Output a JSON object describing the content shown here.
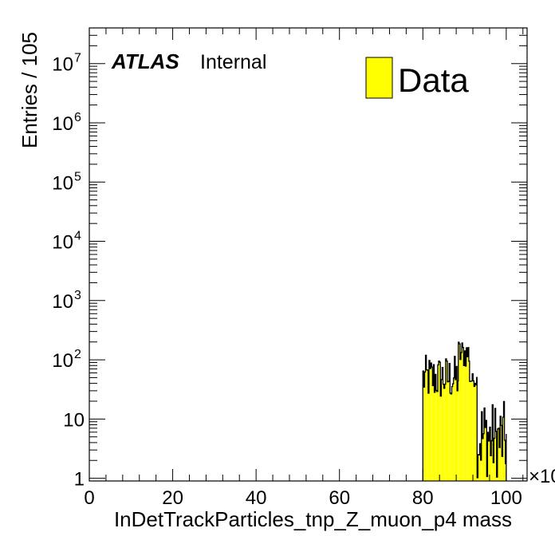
{
  "chart_data": {
    "type": "bar",
    "style": "histogram",
    "xlabel": "InDetTrackParticles_tnp_Z_muon_p4 mass",
    "ylabel": "Entries / 105",
    "x_multiplier_label": "×10",
    "xlim": [
      0,
      105
    ],
    "ylim": [
      0.9,
      40000000
    ],
    "log_y": true,
    "grid": false,
    "x_ticks": [
      {
        "value": 0,
        "label": "0"
      },
      {
        "value": 20,
        "label": "20"
      },
      {
        "value": 40,
        "label": "40"
      },
      {
        "value": 60,
        "label": "60"
      },
      {
        "value": 80,
        "label": "80"
      },
      {
        "value": 100,
        "label": "100"
      }
    ],
    "y_ticks": [
      {
        "value": 1,
        "label": "1"
      },
      {
        "value": 10,
        "label": "10"
      },
      {
        "value": 100,
        "label": "10",
        "exp": "2"
      },
      {
        "value": 1000,
        "label": "10",
        "exp": "3"
      },
      {
        "value": 10000,
        "label": "10",
        "exp": "4"
      },
      {
        "value": 100000,
        "label": "10",
        "exp": "5"
      },
      {
        "value": 1000000,
        "label": "10",
        "exp": "6"
      },
      {
        "value": 10000000,
        "label": "10",
        "exp": "7"
      }
    ],
    "atlas_label": "ATLAS",
    "atlas_sublabel": "Internal",
    "legend": {
      "position": "top-right",
      "entries": [
        {
          "name": "Data",
          "color": "#ffff00"
        }
      ]
    },
    "fill_color": "#ffff00",
    "line_color": "#000000",
    "series": [
      {
        "name": "Data",
        "bin_width": 0.21,
        "regions": [
          {
            "x_start": 80.0,
            "x_end": 88.5,
            "min": 20,
            "max": 120
          },
          {
            "x_start": 88.5,
            "x_end": 91.2,
            "min": 70,
            "max": 230
          },
          {
            "x_start": 91.2,
            "x_end": 93.0,
            "min": 35,
            "max": 60
          },
          {
            "x_start": 93.0,
            "x_end": 96.0,
            "min": 1,
            "max": 25
          },
          {
            "x_start": 96.0,
            "x_end": 100.0,
            "min": 1,
            "max": 20
          }
        ]
      }
    ]
  }
}
